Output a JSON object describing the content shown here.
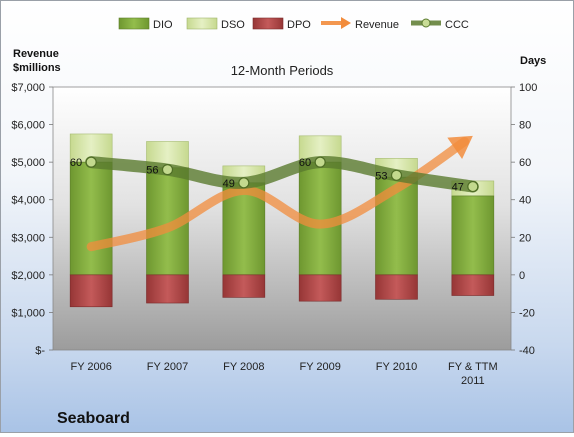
{
  "chart_data": {
    "type": "bar",
    "title": "12-Month Periods",
    "subtitle_label": "Seaboard",
    "ylabel_left": "Revenue\n$millions",
    "ylabel_right": "Days",
    "categories": [
      "FY 2006",
      "FY 2007",
      "FY 2008",
      "FY 2009",
      "FY 2010",
      "FY & TTM\n2011"
    ],
    "left_axis": {
      "min": 0,
      "max": 7000,
      "step": 1000,
      "tick_labels": [
        "$-",
        "$1,000",
        "$2,000",
        "$3,000",
        "$4,000",
        "$5,000",
        "$6,000",
        "$7,000"
      ]
    },
    "right_axis": {
      "min": -40,
      "max": 100,
      "step": 20,
      "tick_labels": [
        "-40",
        "-20",
        "0",
        "20",
        "40",
        "60",
        "80",
        "100"
      ]
    },
    "series": [
      {
        "name": "DIO",
        "kind": "stacked-bar",
        "axis": "right",
        "color": "#7fa83a",
        "values": [
          60,
          57,
          49,
          60,
          52,
          42
        ]
      },
      {
        "name": "DSO",
        "kind": "stacked-bar",
        "axis": "right",
        "color": "#d6e6a8",
        "values": [
          15,
          14,
          9,
          14,
          10,
          8
        ]
      },
      {
        "name": "DPO",
        "kind": "negative-bar",
        "axis": "right",
        "color": "#b04848",
        "values": [
          -17,
          -15,
          -12,
          -14,
          -13,
          -11
        ]
      },
      {
        "name": "Revenue",
        "kind": "arrow-line",
        "axis": "left",
        "color": "#f28c3c",
        "values": [
          2750,
          3250,
          4250,
          3350,
          4300,
          5700
        ]
      },
      {
        "name": "CCC",
        "kind": "line-markers",
        "axis": "right",
        "color": "#5a7a2e",
        "values": [
          60,
          56,
          49,
          60,
          53,
          47
        ]
      }
    ],
    "data_labels": [
      "60",
      "56",
      "49",
      "60",
      "53",
      "47"
    ],
    "legend": {
      "position": "top",
      "items": [
        "DIO",
        "DSO",
        "DPO",
        "Revenue",
        "CCC"
      ]
    },
    "grid": false
  }
}
